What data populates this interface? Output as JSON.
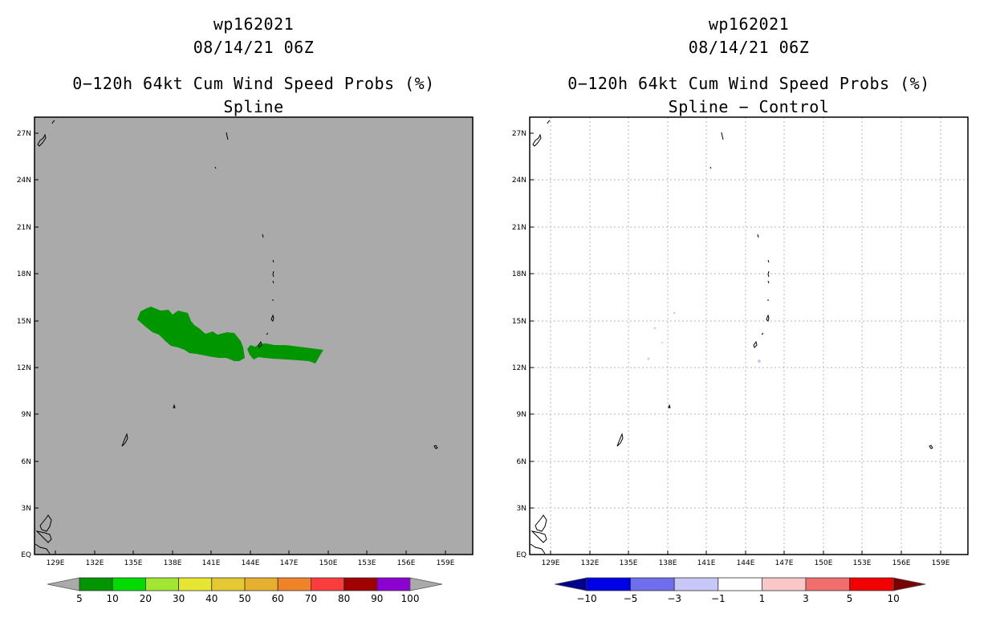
{
  "left_panel": {
    "storm_id": "wp162021",
    "datetime": "08/14/21 06Z",
    "product": "0−120h 64kt Cum Wind Speed Probs (%)",
    "subtitle": "Spline",
    "background_color": "#aaaaaa",
    "probability_area_color": "#009600"
  },
  "right_panel": {
    "storm_id": "wp162021",
    "datetime": "08/14/21 06Z",
    "product": "0−120h 64kt Cum Wind Speed Probs (%)",
    "subtitle": "Spline − Control",
    "background_color": "#ffffff"
  },
  "map": {
    "lat_ticks": [
      "27N",
      "24N",
      "21N",
      "18N",
      "15N",
      "12N",
      "9N",
      "6N",
      "3N",
      "EQ"
    ],
    "lon_ticks": [
      "129E",
      "132E",
      "135E",
      "138E",
      "141E",
      "144E",
      "147E",
      "150E",
      "153E",
      "156E",
      "159E"
    ]
  },
  "left_colorbar": {
    "colors": [
      "#009600",
      "#00dc00",
      "#a0e632",
      "#e6e632",
      "#e6c832",
      "#e6af2d",
      "#f08228",
      "#fa3c3c",
      "#a00000",
      "#8c00d2"
    ],
    "labels": [
      "5",
      "10",
      "20",
      "30",
      "40",
      "50",
      "60",
      "70",
      "80",
      "90",
      "100"
    ],
    "low_arrow_color": "#aaaaaa",
    "high_arrow_color": "#aaaaaa"
  },
  "right_colorbar": {
    "colors": [
      "#0000e6",
      "#6e6eee",
      "#c8c8f8",
      "#ffffff",
      "#fac8c8",
      "#f06e6e",
      "#f00000"
    ],
    "labels": [
      "−10",
      "−5",
      "−3",
      "−1",
      "1",
      "3",
      "5",
      "10"
    ],
    "low_arrow_color": "#00008c",
    "high_arrow_color": "#780000"
  }
}
